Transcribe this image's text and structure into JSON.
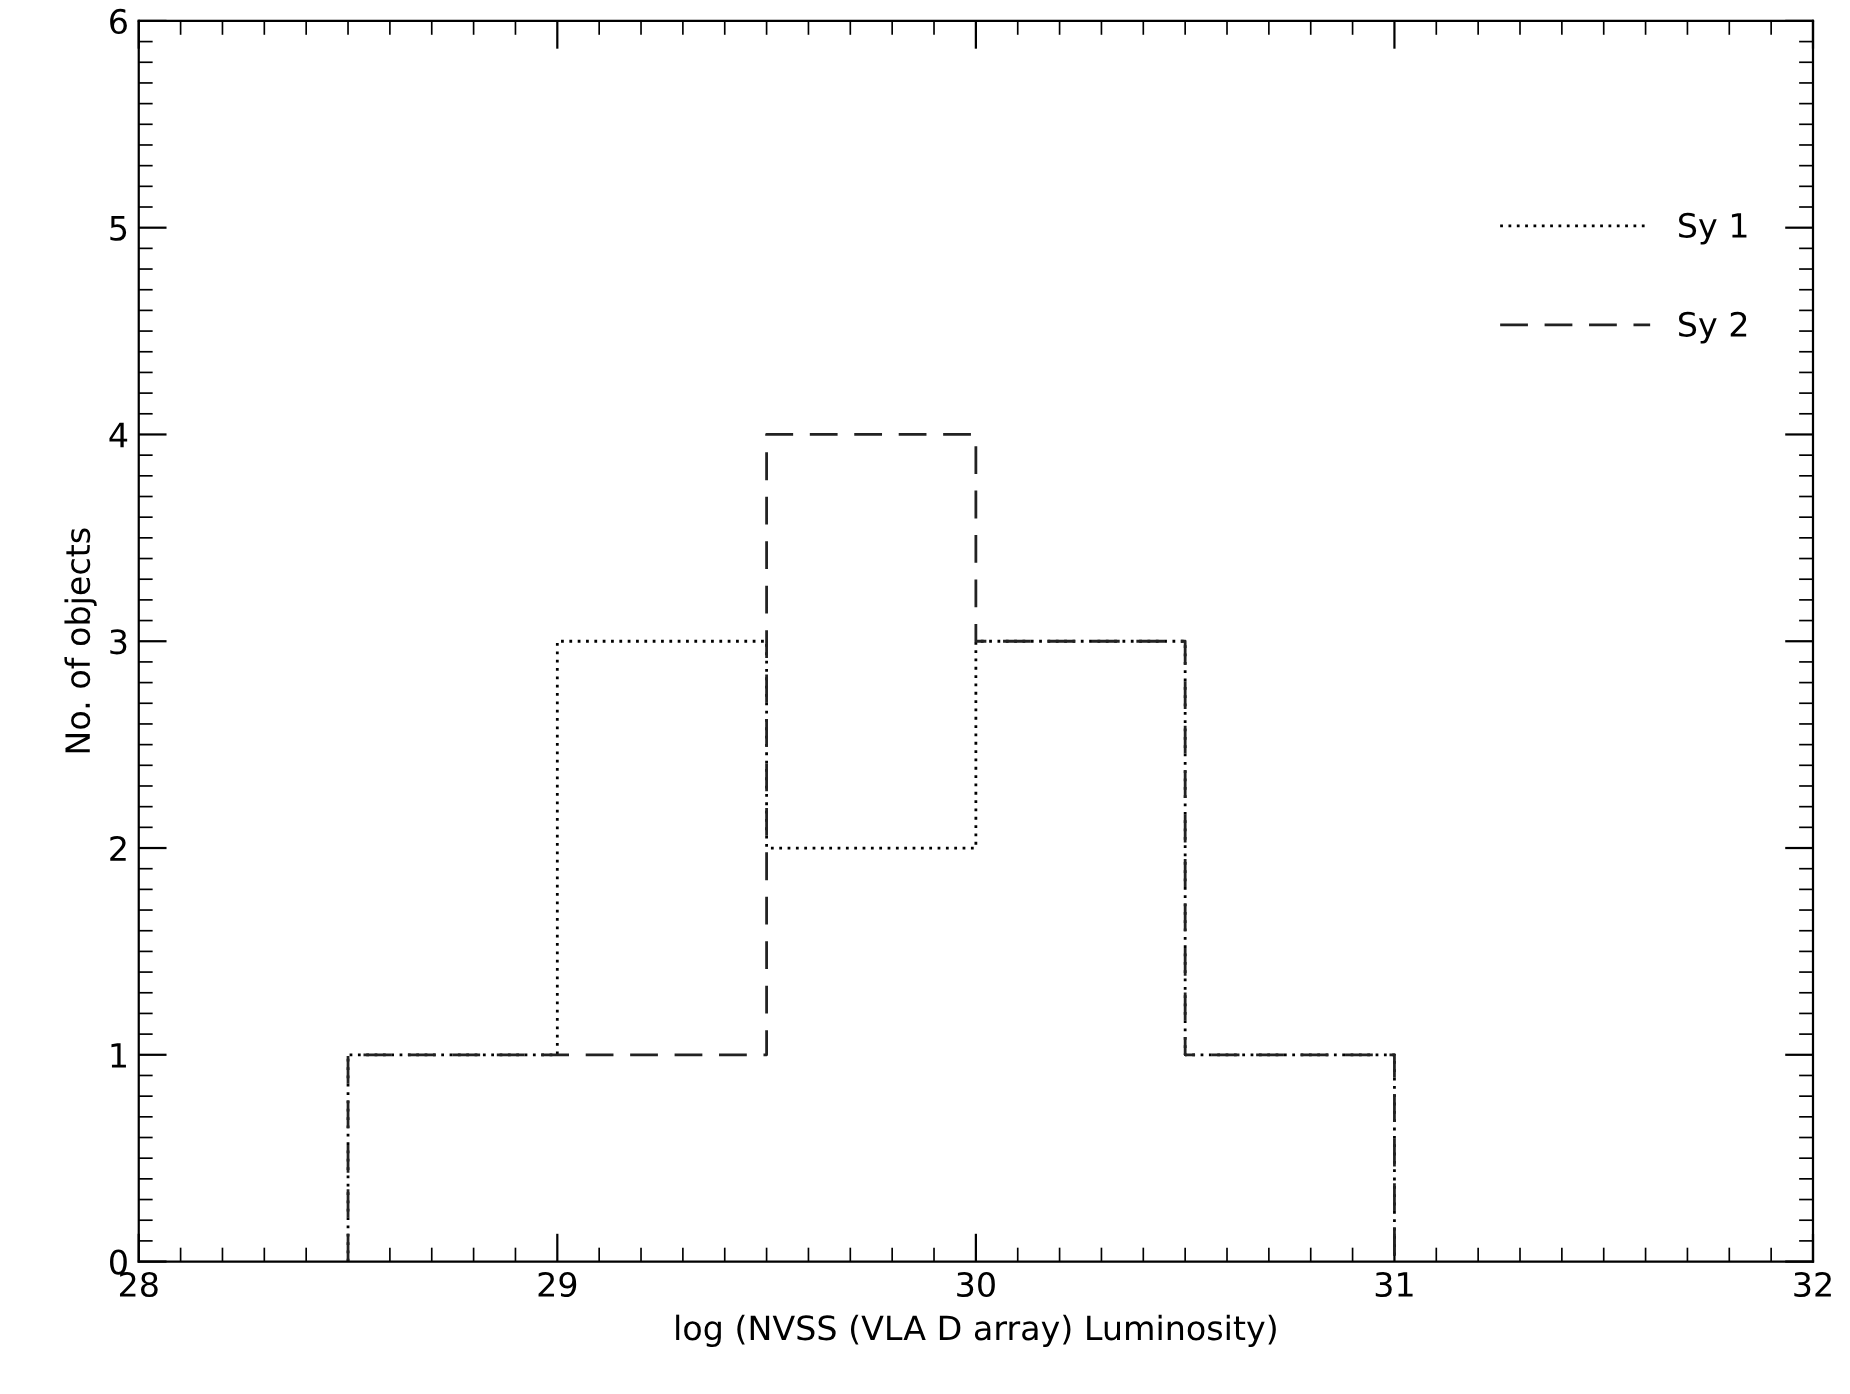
{
  "chart_data": {
    "type": "histogram",
    "xlabel": "log (NVSS (VLA D array) Luminosity)",
    "ylabel": "No. of objects",
    "bins": [
      28.5,
      29.0,
      29.5,
      30.0,
      30.5,
      31.0
    ],
    "series": [
      {
        "name": "Sy 1",
        "color": "#000000",
        "line_style": "dotted",
        "values": [
          1,
          3,
          2,
          3,
          1
        ]
      },
      {
        "name": "Sy 2",
        "color": "#222222",
        "line_style": "dashed",
        "values": [
          1,
          1,
          4,
          3,
          1
        ]
      }
    ],
    "xlim": [
      28,
      32
    ],
    "xticks": [
      28,
      29,
      30,
      31,
      32
    ],
    "ylim": [
      0,
      6
    ],
    "yticks": [
      0,
      1,
      2,
      3,
      4,
      5,
      6
    ],
    "grid": false,
    "legend": "top right"
  }
}
